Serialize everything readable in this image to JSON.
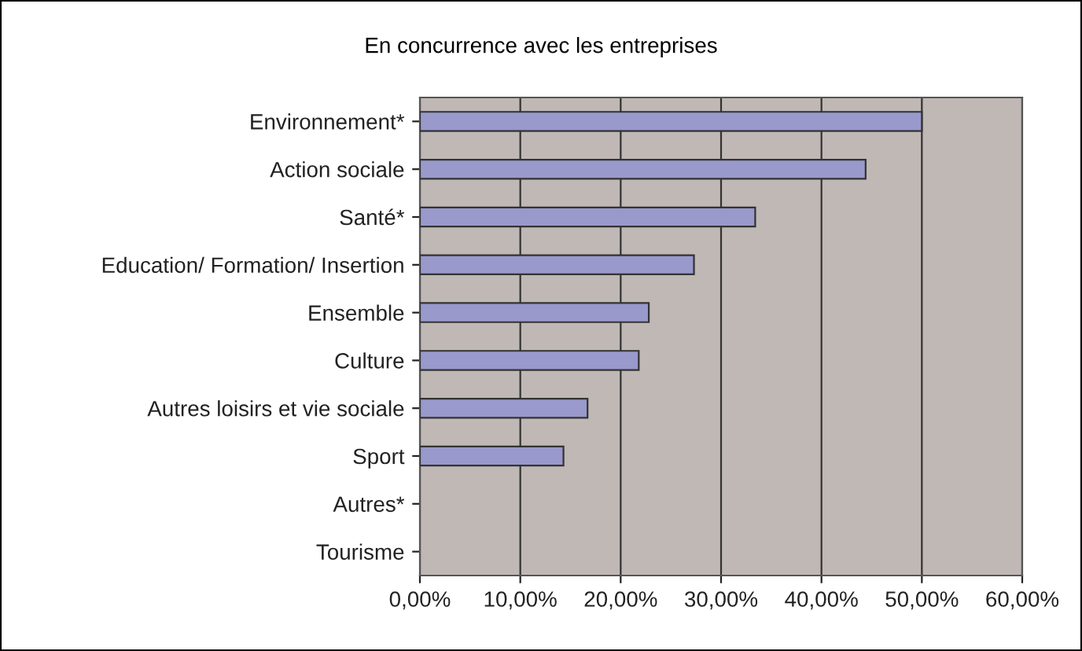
{
  "chart_data": {
    "type": "bar",
    "orientation": "horizontal",
    "title": "En concurrence avec les entreprises",
    "categories": [
      "Environnement*",
      "Action sociale",
      "Santé*",
      "Education/ Formation/ Insertion",
      "Ensemble",
      "Culture",
      "Autres loisirs et vie sociale",
      "Sport",
      "Autres*",
      "Tourisme"
    ],
    "values": [
      50.0,
      44.4,
      33.4,
      27.3,
      22.8,
      21.8,
      16.7,
      14.3,
      null,
      null
    ],
    "color": "#9999cc",
    "xlim": [
      0,
      60
    ],
    "xticks": [
      {
        "value": 0,
        "label": "0,00%"
      },
      {
        "value": 10,
        "label": "10,00%"
      },
      {
        "value": 20,
        "label": "20,00%"
      },
      {
        "value": 30,
        "label": "30,00%"
      },
      {
        "value": 40,
        "label": "40,00%"
      },
      {
        "value": 50,
        "label": "50,00%"
      },
      {
        "value": 60,
        "label": "60,00%"
      }
    ],
    "grid": "x",
    "legend": false
  }
}
